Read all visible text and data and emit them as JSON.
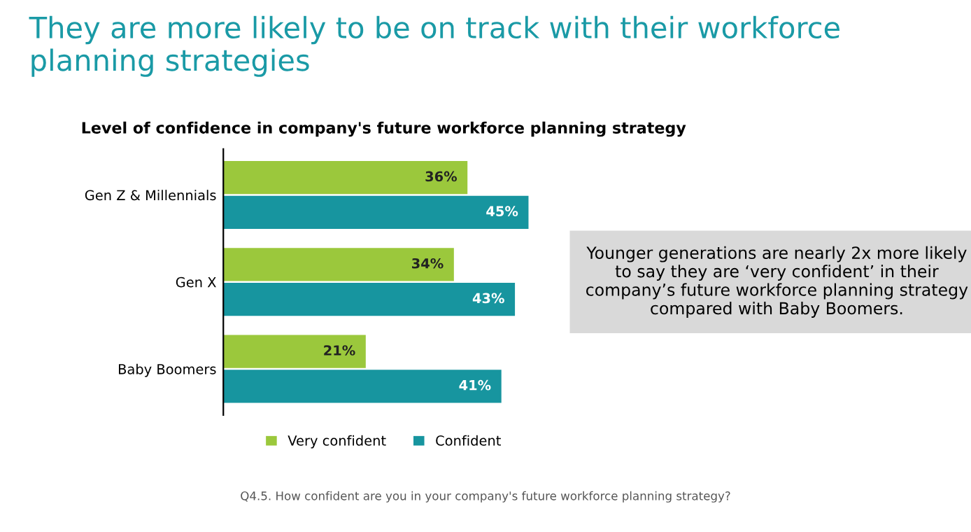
{
  "chart_data": {
    "type": "bar",
    "orientation": "horizontal",
    "title": "They are more likely to be on track with their workforce planning strategies",
    "subtitle": "Level of confidence in company's future workforce planning strategy",
    "categories": [
      "Gen Z & Millennials",
      "Gen X",
      "Baby Boomers"
    ],
    "series": [
      {
        "name": "Very confident",
        "color": "#9bc83c",
        "values": [
          36,
          34,
          21
        ],
        "value_labels": [
          "36%",
          "34%",
          "21%"
        ]
      },
      {
        "name": "Confident",
        "color": "#17959f",
        "values": [
          45,
          43,
          41
        ],
        "value_labels": [
          "45%",
          "43%",
          "41%"
        ]
      }
    ],
    "tick_labels": "y",
    "legend": "bottom",
    "grid": false,
    "annotations": [
      "Younger generations are nearly 2x more likely to say they are ‘very confident’ in their company’s future workforce planning strategy compared with Baby Boomers.",
      "Q4.5. How confident are you in your company's future workforce planning strategy?"
    ]
  }
}
